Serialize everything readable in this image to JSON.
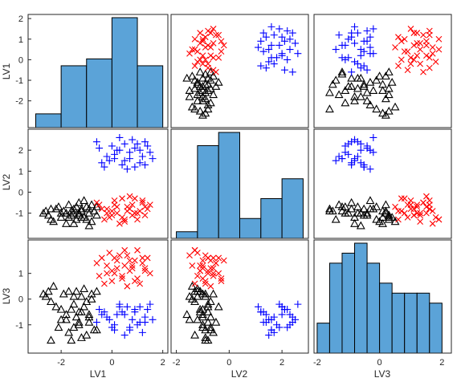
{
  "chart_data": {
    "type": "scatter-matrix",
    "variables": [
      "LV1",
      "LV2",
      "LV3"
    ],
    "ranges": [
      [
        -3.3,
        2.2
      ],
      [
        -2.2,
        3.0
      ],
      [
        -2.1,
        2.3
      ]
    ],
    "xticks": {
      "LV1": [
        "-2",
        "0",
        "2"
      ],
      "LV2": [
        "-2",
        "0",
        "2"
      ],
      "LV3": [
        "-2",
        "0",
        "2"
      ]
    },
    "yticks": {
      "LV1": [
        "2",
        "1",
        "0",
        "-1",
        "-2"
      ],
      "LV2": [
        "2",
        "1",
        "0",
        "-1"
      ],
      "LV3": [
        "1",
        "0",
        "-1"
      ]
    },
    "histograms": {
      "LV1": {
        "edges": [
          -3.0,
          -2.0,
          -1.0,
          0.0,
          1.0,
          2.0
        ],
        "counts": [
          2,
          9,
          10,
          16,
          9
        ]
      },
      "LV2": {
        "edges": [
          -2.0,
          -1.2,
          -0.4,
          0.4,
          1.2,
          2.0,
          2.8
        ],
        "counts": [
          1,
          14,
          16,
          3,
          6,
          9
        ]
      },
      "LV3": {
        "edges": [
          -2.0,
          -1.6,
          -1.2,
          -0.8,
          -0.4,
          0.0,
          0.4,
          0.8,
          1.2,
          1.6,
          2.0
        ],
        "counts": [
          3,
          9,
          10,
          11,
          9,
          7,
          6,
          6,
          6,
          5
        ]
      }
    },
    "groups": [
      {
        "marker": "triangle",
        "color": "#000000",
        "points": [
          [
            -2.7,
            -1.0,
            0.2
          ],
          [
            -2.5,
            -1.1,
            0.3
          ],
          [
            -2.6,
            -0.9,
            0.1
          ],
          [
            -2.4,
            -1.3,
            -0.1
          ],
          [
            -2.2,
            -0.8,
            -0.3
          ],
          [
            -2.3,
            -1.4,
            0.5
          ],
          [
            -2.0,
            -1.2,
            -0.8
          ],
          [
            -1.9,
            -0.9,
            0.2
          ],
          [
            -1.8,
            -1.0,
            -0.6
          ],
          [
            -2.1,
            -0.7,
            -1.1
          ],
          [
            -1.6,
            -1.1,
            -0.4
          ],
          [
            -1.5,
            -0.8,
            -0.2
          ],
          [
            -1.4,
            -1.3,
            0.3
          ],
          [
            -1.7,
            -0.6,
            -1.3
          ],
          [
            -1.3,
            -1.0,
            -1.0
          ],
          [
            -1.2,
            -0.8,
            -0.5
          ],
          [
            -1.1,
            -1.2,
            0.4
          ],
          [
            -1.0,
            -0.7,
            -0.1
          ],
          [
            -0.9,
            -1.0,
            -0.7
          ],
          [
            -0.8,
            -1.4,
            0.0
          ],
          [
            -0.7,
            -0.9,
            -1.2
          ],
          [
            -0.6,
            -1.1,
            0.3
          ],
          [
            -1.3,
            -0.5,
            -0.9
          ],
          [
            -1.5,
            -1.5,
            0.1
          ],
          [
            -2.0,
            -1.0,
            -0.4
          ],
          [
            -1.1,
            -0.4,
            -0.3
          ],
          [
            -0.9,
            -1.6,
            -0.6
          ],
          [
            -1.2,
            -0.9,
            -1.5
          ],
          [
            -1.7,
            -1.2,
            0.3
          ],
          [
            -1.4,
            -0.7,
            -0.7
          ],
          [
            -1.0,
            -1.3,
            -1.4
          ],
          [
            -0.8,
            -0.6,
            0.2
          ],
          [
            -1.6,
            -0.9,
            -1.6
          ],
          [
            -0.9,
            -0.8,
            -0.9
          ],
          [
            -1.2,
            -1.2,
            0.1
          ],
          [
            -1.8,
            -1.5,
            -0.8
          ],
          [
            -2.4,
            -0.8,
            -1.6
          ],
          [
            -0.6,
            -0.7,
            -1.2
          ],
          [
            -1.3,
            -1.1,
            -0.5
          ],
          [
            -1.5,
            -1.0,
            -1.1
          ]
        ]
      },
      {
        "marker": "x",
        "color": "#ff0000",
        "points": [
          [
            -0.4,
            -0.8,
            1.6
          ],
          [
            -0.2,
            -1.0,
            1.3
          ],
          [
            0.0,
            -1.1,
            1.1
          ],
          [
            0.2,
            -0.7,
            1.5
          ],
          [
            0.4,
            -1.2,
            0.9
          ],
          [
            0.6,
            -0.9,
            1.7
          ],
          [
            0.8,
            -0.6,
            1.2
          ],
          [
            1.0,
            -1.0,
            0.8
          ],
          [
            1.2,
            -0.5,
            1.4
          ],
          [
            1.4,
            -0.8,
            1.6
          ],
          [
            -0.3,
            -1.3,
            0.6
          ],
          [
            0.1,
            -0.4,
            1.0
          ],
          [
            0.5,
            -1.4,
            1.3
          ],
          [
            0.9,
            -0.3,
            0.7
          ],
          [
            1.3,
            -1.1,
            1.1
          ],
          [
            -0.5,
            -0.6,
            0.9
          ],
          [
            0.3,
            -1.5,
            1.7
          ],
          [
            0.7,
            -0.2,
            1.5
          ],
          [
            1.1,
            -0.9,
            0.6
          ],
          [
            1.5,
            -0.6,
            1.0
          ],
          [
            -0.1,
            -1.2,
            1.8
          ],
          [
            0.6,
            -0.7,
            0.5
          ],
          [
            0.2,
            -1.0,
            1.2
          ],
          [
            1.0,
            -1.3,
            1.9
          ],
          [
            -0.6,
            -0.5,
            1.4
          ],
          [
            0.4,
            -0.3,
            0.8
          ],
          [
            0.8,
            -1.1,
            1.3
          ],
          [
            1.2,
            -0.4,
            1.6
          ],
          [
            0.0,
            -0.9,
            0.7
          ],
          [
            0.5,
            -1.3,
            1.9
          ],
          [
            -0.2,
            -0.8,
            1.0
          ],
          [
            1.3,
            -0.7,
            1.2
          ],
          [
            0.9,
            -1.0,
            1.5
          ],
          [
            0.1,
            -0.6,
            1.6
          ],
          [
            0.7,
            -0.8,
            1.1
          ]
        ]
      },
      {
        "marker": "plus",
        "color": "#0000ff",
        "points": [
          [
            -0.3,
            1.2,
            -0.5
          ],
          [
            -0.1,
            1.5,
            -0.8
          ],
          [
            0.1,
            1.8,
            -1.0
          ],
          [
            0.3,
            2.0,
            -0.3
          ],
          [
            0.5,
            2.3,
            -0.6
          ],
          [
            0.7,
            1.6,
            -1.2
          ],
          [
            0.9,
            2.1,
            -0.4
          ],
          [
            1.1,
            1.4,
            -0.9
          ],
          [
            1.3,
            2.4,
            -0.7
          ],
          [
            1.5,
            1.9,
            -0.2
          ],
          [
            0.0,
            2.2,
            -1.1
          ],
          [
            0.4,
            1.3,
            -0.5
          ],
          [
            0.8,
            2.5,
            -0.8
          ],
          [
            1.2,
            1.7,
            -1.3
          ],
          [
            0.2,
            2.0,
            -0.6
          ],
          [
            0.6,
            1.1,
            -0.3
          ],
          [
            1.0,
            2.3,
            -1.0
          ],
          [
            -0.2,
            1.7,
            -0.7
          ],
          [
            1.4,
            2.2,
            -0.4
          ],
          [
            0.5,
            1.5,
            -1.4
          ],
          [
            -0.6,
            2.4,
            -0.9
          ],
          [
            0.9,
            1.2,
            -0.5
          ],
          [
            1.6,
            1.6,
            -0.8
          ],
          [
            0.3,
            2.6,
            -0.2
          ],
          [
            0.7,
            1.9,
            -1.1
          ],
          [
            -0.4,
            1.4,
            -0.6
          ],
          [
            1.1,
            2.0,
            -0.3
          ],
          [
            0.1,
            1.6,
            -1.2
          ],
          [
            1.3,
            1.3,
            -0.9
          ],
          [
            -0.5,
            2.1,
            -0.4
          ]
        ]
      }
    ],
    "style": {
      "bar_fill": "#5ba3d8",
      "bar_edge": "#000000",
      "frame": "#262626",
      "tick_text": "#262626"
    }
  }
}
